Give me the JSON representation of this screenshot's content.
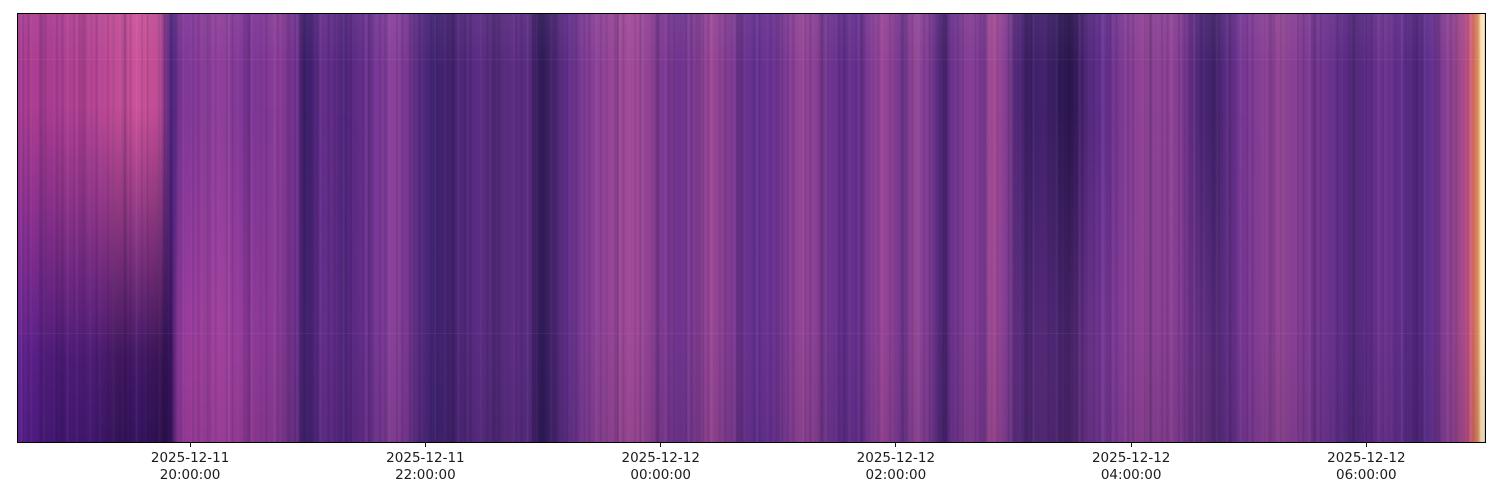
{
  "figure": {
    "background_color": "#ffffff",
    "spine_color": "#000000",
    "tick_label_color": "#1c1c1c"
  },
  "chart_data": {
    "type": "heatmap",
    "title": "",
    "xlabel": "",
    "ylabel": "",
    "colormap": "magma",
    "legend": "none",
    "grid": false,
    "x_axis": {
      "tick_labels": [
        {
          "date": "2025-12-11",
          "time": "20:00:00",
          "pos_pct": 11.8
        },
        {
          "date": "2025-12-11",
          "time": "22:00:00",
          "pos_pct": 27.84
        },
        {
          "date": "2025-12-12",
          "time": "00:00:00",
          "pos_pct": 43.88
        },
        {
          "date": "2025-12-12",
          "time": "02:00:00",
          "pos_pct": 59.91
        },
        {
          "date": "2025-12-12",
          "time": "04:00:00",
          "pos_pct": 75.95
        },
        {
          "date": "2025-12-12",
          "time": "06:00:00",
          "pos_pct": 91.98
        }
      ]
    },
    "y_axis": {
      "tick_labels": []
    },
    "column_stops": [
      [
        0.0,
        "#a23a90"
      ],
      [
        0.8,
        "#ad3d92"
      ],
      [
        2.5,
        "#a93c90"
      ],
      [
        4.2,
        "#b24292"
      ],
      [
        5.6,
        "#b84694"
      ],
      [
        6.8,
        "#c24d96"
      ],
      [
        8.3,
        "#ca5298"
      ],
      [
        9.5,
        "#bf4b94"
      ],
      [
        10.1,
        "#8d3b90"
      ],
      [
        10.4,
        "#45217a"
      ],
      [
        10.7,
        "#5c2b85"
      ],
      [
        11.1,
        "#7e3796"
      ],
      [
        11.9,
        "#83389a"
      ],
      [
        12.8,
        "#8e3f9b"
      ],
      [
        13.6,
        "#91409c"
      ],
      [
        14.6,
        "#873b98"
      ],
      [
        15.7,
        "#7c3596"
      ],
      [
        16.8,
        "#813896"
      ],
      [
        18.0,
        "#8a3d96"
      ],
      [
        19.0,
        "#6f3090"
      ],
      [
        19.5,
        "#361c60"
      ],
      [
        19.9,
        "#3f2070"
      ],
      [
        20.5,
        "#5e2b86"
      ],
      [
        21.3,
        "#6a3090"
      ],
      [
        22.1,
        "#4c2478"
      ],
      [
        23.1,
        "#5e2b86"
      ],
      [
        24.0,
        "#703492"
      ],
      [
        25.0,
        "#7c3a96"
      ],
      [
        25.6,
        "#8a4299"
      ],
      [
        26.5,
        "#7a3894"
      ],
      [
        27.4,
        "#552a80"
      ],
      [
        28.4,
        "#3f2270"
      ],
      [
        29.3,
        "#44236f"
      ],
      [
        30.3,
        "#4e2678"
      ],
      [
        31.4,
        "#5c2c84"
      ],
      [
        32.7,
        "#512978"
      ],
      [
        33.8,
        "#5e2d84"
      ],
      [
        34.9,
        "#552a7e"
      ],
      [
        35.7,
        "#2e1955"
      ],
      [
        36.7,
        "#4a2572"
      ],
      [
        37.7,
        "#6a3390"
      ],
      [
        38.6,
        "#7e3b94"
      ],
      [
        39.7,
        "#8e4296"
      ],
      [
        40.9,
        "#9c4898"
      ],
      [
        42.0,
        "#a24b97"
      ],
      [
        43.1,
        "#8e4194"
      ],
      [
        44.1,
        "#7a3892"
      ],
      [
        45.2,
        "#6f348e"
      ],
      [
        46.1,
        "#7e3b92"
      ],
      [
        47.2,
        "#9a4795"
      ],
      [
        48.2,
        "#863e92"
      ],
      [
        49.2,
        "#6f348e"
      ],
      [
        50.2,
        "#643090"
      ],
      [
        51.3,
        "#6a3292"
      ],
      [
        52.3,
        "#7c3a94"
      ],
      [
        53.3,
        "#944596"
      ],
      [
        54.3,
        "#8a4094"
      ],
      [
        55.4,
        "#6e3490"
      ],
      [
        56.3,
        "#5e2c86"
      ],
      [
        57.3,
        "#6a3290"
      ],
      [
        58.1,
        "#7e3a94"
      ],
      [
        58.9,
        "#9a4696"
      ],
      [
        59.6,
        "#8a3f94"
      ],
      [
        60.3,
        "#6f348e"
      ],
      [
        61.1,
        "#944897"
      ],
      [
        62.2,
        "#7a3992"
      ],
      [
        63.0,
        "#45226f"
      ],
      [
        63.8,
        "#6f348e"
      ],
      [
        64.9,
        "#863e94"
      ],
      [
        65.8,
        "#7a3892"
      ],
      [
        66.4,
        "#aa4f98"
      ],
      [
        67.3,
        "#863e92"
      ],
      [
        68.1,
        "#52287a"
      ],
      [
        69.0,
        "#3a1f64"
      ],
      [
        70.0,
        "#45226e"
      ],
      [
        70.8,
        "#331b5a"
      ],
      [
        71.8,
        "#2a164e"
      ],
      [
        72.7,
        "#4c2474"
      ],
      [
        73.8,
        "#633090"
      ],
      [
        74.8,
        "#743692"
      ],
      [
        75.9,
        "#863e94"
      ],
      [
        76.8,
        "#944596"
      ],
      [
        77.6,
        "#8a4094"
      ],
      [
        78.6,
        "#8e4294"
      ],
      [
        79.5,
        "#7a3890"
      ],
      [
        80.6,
        "#4c2676"
      ],
      [
        81.6,
        "#3f2168"
      ],
      [
        82.8,
        "#6a3290"
      ],
      [
        84.0,
        "#7e3a94"
      ],
      [
        85.0,
        "#8a4096"
      ],
      [
        86.1,
        "#944795"
      ],
      [
        87.0,
        "#863e94"
      ],
      [
        88.1,
        "#7a3892"
      ],
      [
        89.1,
        "#6f3490"
      ],
      [
        90.2,
        "#5e2c86"
      ],
      [
        91.1,
        "#52287c"
      ],
      [
        92.2,
        "#5e2c86"
      ],
      [
        93.2,
        "#6f3490"
      ],
      [
        94.3,
        "#633090"
      ],
      [
        95.2,
        "#4c2476"
      ],
      [
        96.2,
        "#613090"
      ],
      [
        97.0,
        "#7e3a92"
      ],
      [
        98.0,
        "#94448e"
      ],
      [
        98.6,
        "#ad4a88"
      ],
      [
        99.0,
        "#cb5b7c"
      ],
      [
        99.3,
        "#ea7c60"
      ],
      [
        99.5,
        "#fba45c"
      ],
      [
        99.7,
        "#fddfb0"
      ],
      [
        100.0,
        "#fee8c8"
      ]
    ],
    "bottom_region_stops": [
      [
        0.0,
        "rgba(91,33,147,0.95)"
      ],
      [
        1.5,
        "rgba(74,26,130,0.95)"
      ],
      [
        2.9,
        "rgba(60,21,110,0.95)"
      ],
      [
        4.2,
        "rgba(69,25,122,0.95)"
      ],
      [
        5.8,
        "rgba(58,21,108,0.95)"
      ],
      [
        6.9,
        "rgba(47,16,88,0.95)"
      ],
      [
        8.3,
        "rgba(50,18,100,0.95)"
      ],
      [
        9.6,
        "rgba(40,13,78,0.95)"
      ],
      [
        10.4,
        "rgba(44,15,82,0.95)"
      ],
      [
        10.8,
        "rgba(138,53,150,0.9)"
      ],
      [
        11.5,
        "rgba(162,63,158,0.9)"
      ],
      [
        13.8,
        "rgba(168,67,162,0.9)"
      ],
      [
        15.8,
        "rgba(152,60,154,0.85)"
      ],
      [
        17.5,
        "rgba(142,58,150,0.6)"
      ],
      [
        19.3,
        "rgba(80,40,120,0.35)"
      ],
      [
        21.0,
        "rgba(106,48,144,0.12)"
      ],
      [
        24.0,
        "rgba(106,48,144,0)"
      ],
      [
        66.0,
        "rgba(130,62,148,0)"
      ],
      [
        69.0,
        "rgba(120,58,144,0.4)"
      ],
      [
        71.0,
        "rgba(105,50,138,0.5)"
      ],
      [
        72.5,
        "rgba(130,62,148,0.45)"
      ],
      [
        74.5,
        "rgba(150,70,160,0.4)"
      ],
      [
        76.5,
        "rgba(140,66,152,0.28)"
      ],
      [
        79.0,
        "rgba(120,55,140,0.22)"
      ],
      [
        80.8,
        "rgba(150,70,160,0.4)"
      ],
      [
        82.5,
        "rgba(120,55,140,0.12)"
      ],
      [
        85.0,
        "rgba(120,55,140,0)"
      ],
      [
        100.0,
        "rgba(0,0,0,0)"
      ]
    ]
  }
}
